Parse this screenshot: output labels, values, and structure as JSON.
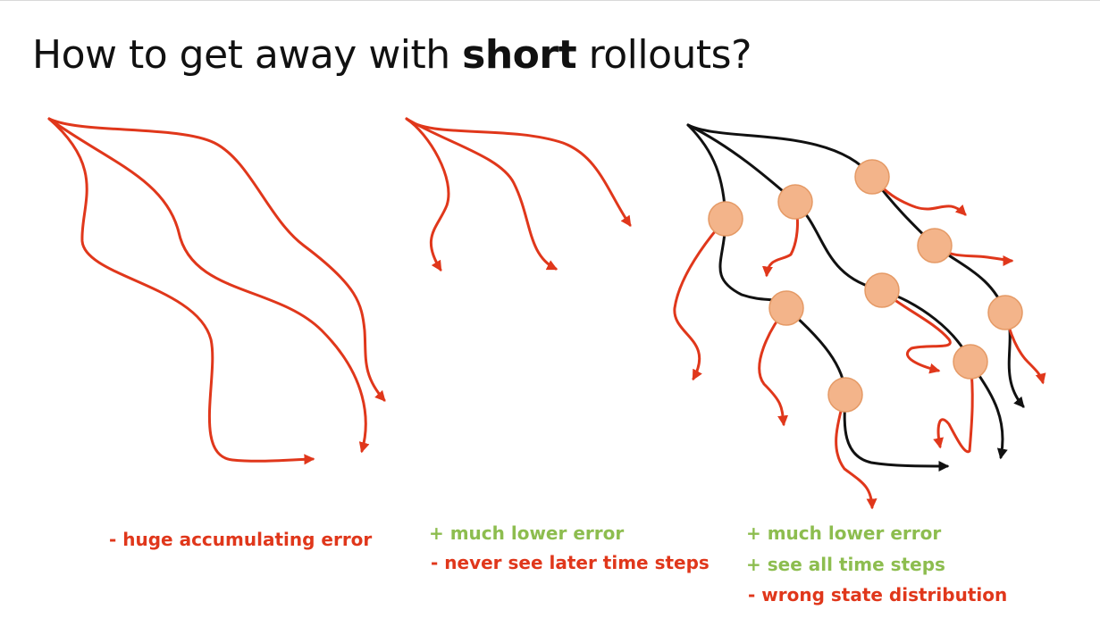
{
  "title": {
    "prefix": "How to get away with ",
    "emphasis": "short",
    "suffix": " rollouts?"
  },
  "captions": {
    "left": {
      "minus": "- huge accumulating error"
    },
    "middle": {
      "plus": "+ much lower error",
      "minus": "- never see later time steps"
    },
    "right": {
      "plus1": "+ much lower error",
      "plus2": "+ see all time steps",
      "minus": "- wrong state distribution"
    }
  },
  "colors": {
    "model_rollout": "#e0371b",
    "real_trajectory": "#111111",
    "state": "#f3b48a",
    "state_outline": "#e59a66",
    "positive": "#8dbd4f",
    "negative": "#e0371b"
  }
}
